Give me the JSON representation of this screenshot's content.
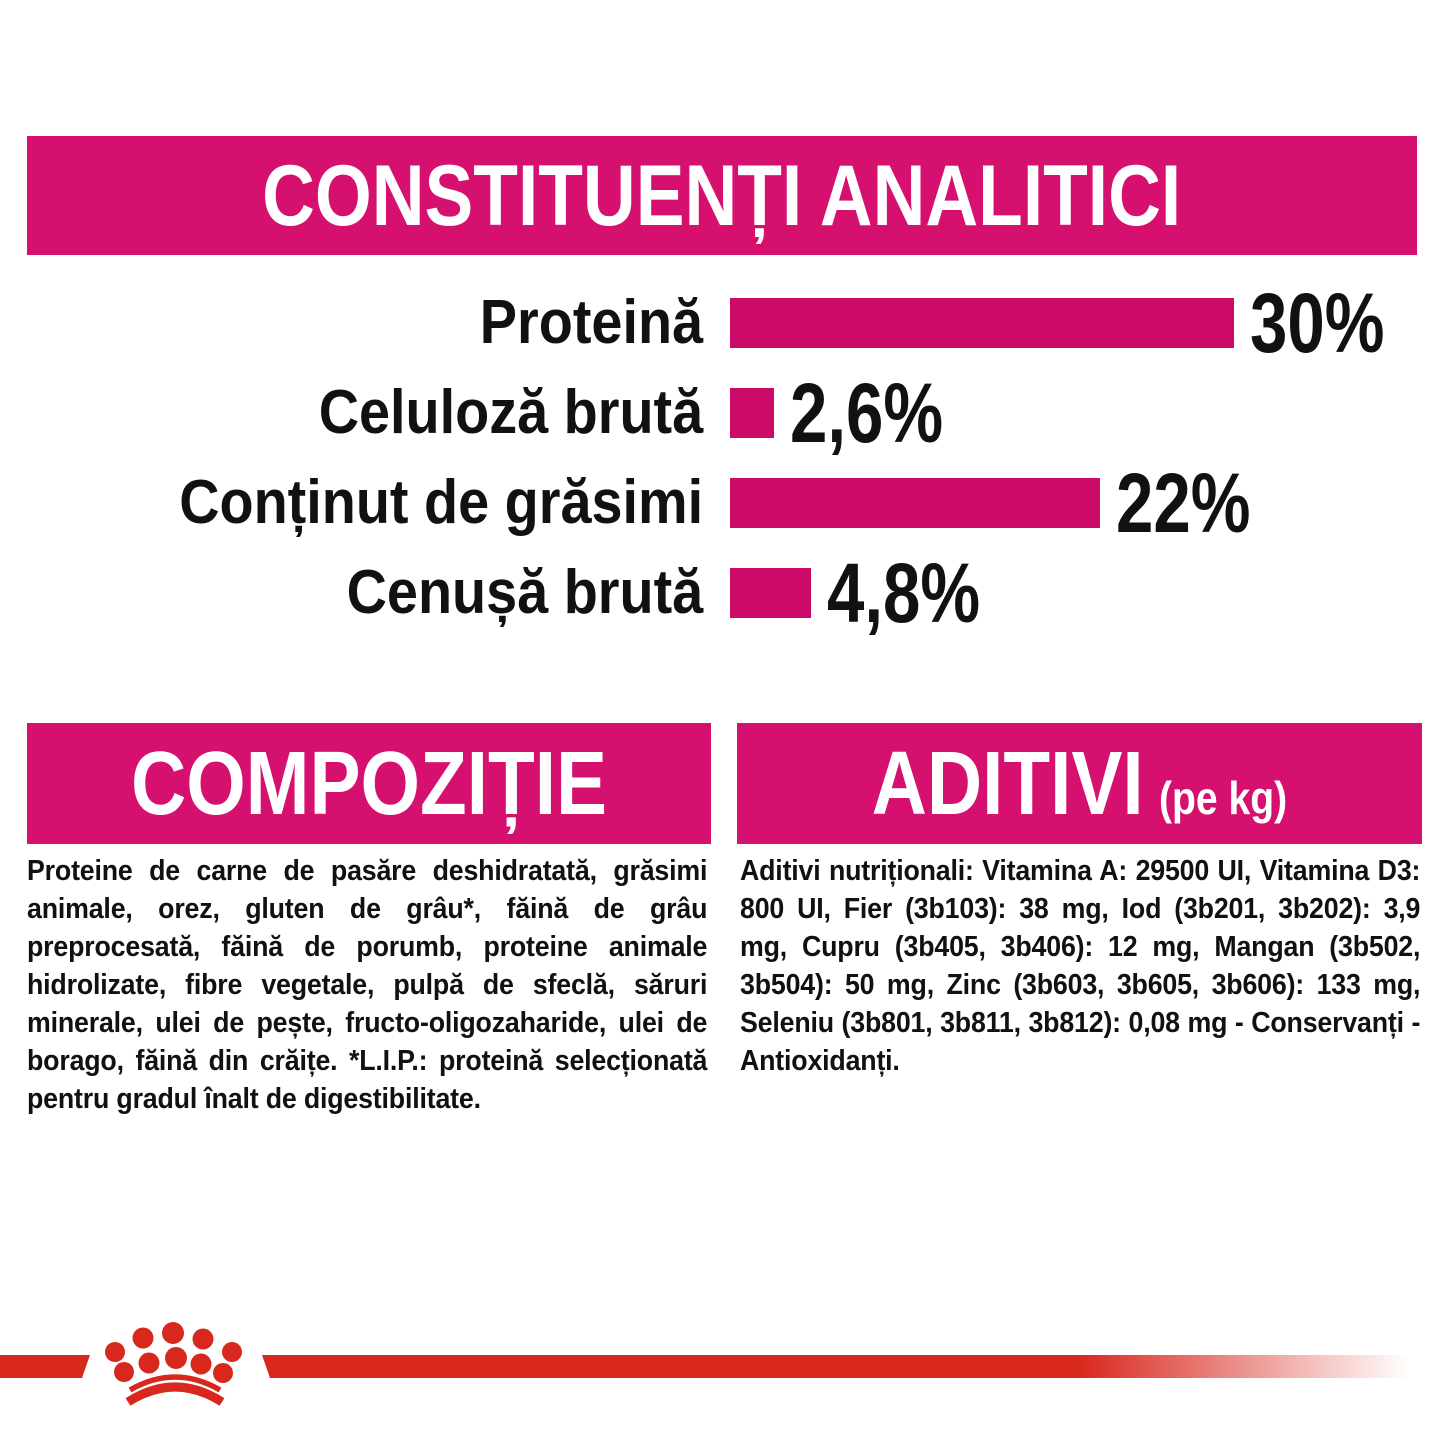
{
  "chart_data": {
    "type": "bar",
    "orientation": "horizontal",
    "title": "CONSTITUENȚI ANALITICI",
    "categories": [
      "Proteină",
      "Celuloză brută",
      "Conținut de grăsimi",
      "Cenușă brută"
    ],
    "values": [
      30,
      2.6,
      22,
      4.8
    ],
    "value_labels": [
      "30%",
      "2,6%",
      "22%",
      "4,8%"
    ],
    "xlim": [
      0,
      30
    ],
    "grid": false,
    "legend": false,
    "bar_color": "#CE0A68"
  },
  "sections": {
    "composition": {
      "title": "COMPOZIȚIE",
      "body": "Proteine de carne de pasăre deshidratată, grăsimi animale, orez, gluten de grâu*, făină de grâu preprocesată, făină de porumb, proteine animale hidrolizate, fibre vegetale, pulpă de sfeclă, săruri minerale, ulei de pește, fructo-oligozaharide, ulei de borago, făină din crăițe. *L.I.P.: proteină selecționată pentru gradul înalt de digestibilitate."
    },
    "additives": {
      "title": "ADITIVI",
      "title_suffix": "(pe kg)",
      "body": "Aditivi nutriționali: Vitamina A: 29500 UI, Vitamina D3: 800 UI, Fier (3b103): 38 mg, Iod (3b201, 3b202): 3,9 mg, Cupru (3b405, 3b406): 12 mg, Mangan (3b502, 3b504): 50 mg, Zinc (3b603, 3b605, 3b606): 133 mg, Seleniu (3b801, 3b811, 3b812): 0,08 mg - Conservanți - Antioxidanți."
    }
  },
  "footer": {
    "brand_mark_icon": "royal-canin-crown"
  },
  "colors": {
    "magenta": "#D5106F",
    "bar": "#CE0A68",
    "brand_red": "#D8281E",
    "text": "#111111",
    "background": "#FFFFFF"
  }
}
